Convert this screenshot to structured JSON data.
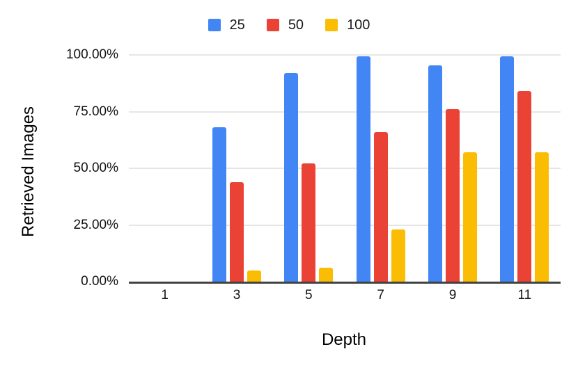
{
  "chart_data": {
    "type": "bar",
    "title": "",
    "xlabel": "Depth",
    "ylabel": "Retrieved Images",
    "categories": [
      "1",
      "3",
      "5",
      "7",
      "9",
      "11"
    ],
    "series": [
      {
        "name": "25",
        "color": "#4285F4",
        "values": [
          0,
          68,
          92,
          99.5,
          95.5,
          99.5
        ]
      },
      {
        "name": "50",
        "color": "#EA4335",
        "values": [
          0,
          44,
          52,
          66,
          76,
          84
        ]
      },
      {
        "name": "100",
        "color": "#FBBC04",
        "values": [
          0,
          5,
          6,
          23,
          57,
          57
        ]
      }
    ],
    "y_ticks": [
      {
        "label": "100.00%",
        "value": 100
      },
      {
        "label": "75.00%",
        "value": 75
      },
      {
        "label": "50.00%",
        "value": 50
      },
      {
        "label": "25.00%",
        "value": 25
      },
      {
        "label": "0.00%",
        "value": 0
      }
    ],
    "ylim": [
      0,
      100
    ],
    "grid": true,
    "legend_position": "top"
  },
  "colors": {
    "background": "#ffffff",
    "axis_line": "#424242",
    "gridline": "#e6e6e6",
    "tick_text": "#131313",
    "title_text": "#000000"
  }
}
